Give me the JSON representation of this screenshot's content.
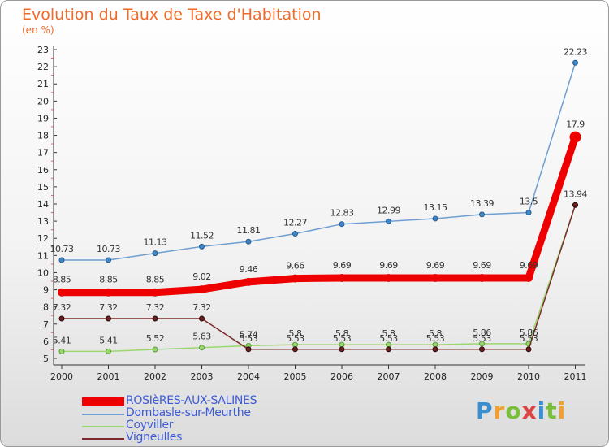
{
  "header": {
    "title": "Evolution du Taux de Taxe d'Habitation",
    "unit": "(en %)"
  },
  "brand": {
    "text": "Proxiti",
    "colors": [
      "#3a8fd0",
      "#f0a030",
      "#7abf3a",
      "#e04040",
      "#3a8fd0",
      "#7abf3a",
      "#f0a030"
    ]
  },
  "chart_data": {
    "type": "line",
    "title": "Evolution du Taux de Taxe d'Habitation",
    "ylabel": "(en %)",
    "xlabel": "",
    "categories": [
      "2000",
      "2001",
      "2002",
      "2003",
      "2004",
      "2005",
      "2006",
      "2007",
      "2008",
      "2009",
      "2010",
      "2011"
    ],
    "ylim": [
      5,
      23
    ],
    "yticks": [
      "5",
      "6",
      "7",
      "8",
      "9",
      "10",
      "11",
      "12",
      "13",
      "14",
      "15",
      "16",
      "17",
      "18",
      "19",
      "20",
      "21",
      "22",
      "23"
    ],
    "grid": false,
    "legend_position": "bottom-left",
    "series": [
      {
        "name": "Dombasle-sur-Meurthe",
        "color": "#6f9fd2",
        "values": [
          10.73,
          10.73,
          11.13,
          11.52,
          11.81,
          12.27,
          12.83,
          12.99,
          13.15,
          13.39,
          13.5,
          22.23
        ],
        "labels": [
          "10.73",
          "10.73",
          "11.13",
          "11.52",
          "11.81",
          "12.27",
          "12.83",
          "12.99",
          "13.15",
          "13.39",
          "13.5",
          "22.23"
        ]
      },
      {
        "name": "Coyviller",
        "color": "#9ad86e",
        "values": [
          5.41,
          5.41,
          5.52,
          5.63,
          5.74,
          5.8,
          5.8,
          5.8,
          5.8,
          5.86,
          5.86,
          13.94
        ],
        "labels": [
          "5.41",
          "5.41",
          "5.52",
          "5.63",
          "5.74",
          "5.8",
          "5.8",
          "5.8",
          "5.8",
          "5.86",
          "5.86",
          ""
        ]
      },
      {
        "name": "Vigneulles",
        "color": "#7a2a2a",
        "values": [
          7.32,
          7.32,
          7.32,
          7.32,
          5.53,
          5.53,
          5.53,
          5.53,
          5.53,
          5.53,
          5.53,
          13.94
        ],
        "labels": [
          "7.32",
          "7.32",
          "7.32",
          "7.32",
          "5.53",
          "5.53",
          "5.53",
          "5.53",
          "5.53",
          "5.53",
          "5.53",
          "13.94"
        ]
      },
      {
        "name": "ROSIèRES-AUX-SALINES",
        "color": "#ee0000",
        "values": [
          8.85,
          8.85,
          8.85,
          9.02,
          9.46,
          9.66,
          9.69,
          9.69,
          9.69,
          9.69,
          9.69,
          17.9
        ],
        "labels": [
          "8.85",
          "8.85",
          "8.85",
          "9.02",
          "9.46",
          "9.66",
          "9.69",
          "9.69",
          "9.69",
          "9.69",
          "9.69",
          "17.9"
        ]
      }
    ]
  },
  "legend": [
    {
      "name": "ROSIèRES-AUX-SALINES",
      "color": "#ee0000",
      "style": "thick"
    },
    {
      "name": "Dombasle-sur-Meurthe",
      "color": "#6f9fd2",
      "style": "thin"
    },
    {
      "name": "Coyviller",
      "color": "#9ad86e",
      "style": "thin"
    },
    {
      "name": "Vigneulles",
      "color": "#7a2a2a",
      "style": "thin"
    }
  ]
}
